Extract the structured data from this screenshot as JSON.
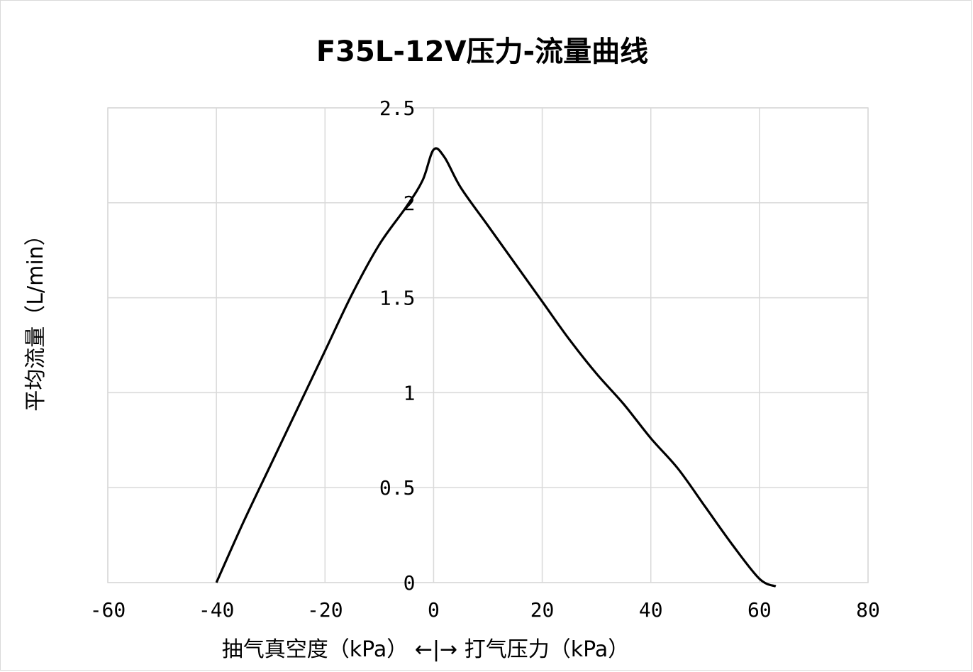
{
  "chart_data": {
    "type": "line",
    "title": "F35L-12V压力-流量曲线",
    "xlabel": "抽气真空度（kPa）  ←|→  打气压力（kPa）",
    "ylabel": "平均流量（L/min）",
    "xlim": [
      -60,
      80
    ],
    "ylim": [
      0,
      2.5
    ],
    "x_ticks": [
      "-60",
      "-40",
      "-20",
      "0",
      "20",
      "40",
      "60",
      "80"
    ],
    "y_ticks": [
      "0",
      "0.5",
      "1",
      "1.5",
      "2",
      "2.5"
    ],
    "grid": true,
    "series": [
      {
        "color": "#000000",
        "x": [
          -40,
          -35,
          -30,
          -25,
          -20,
          -15,
          -10,
          -5,
          -2,
          0,
          2,
          5,
          10,
          15,
          20,
          25,
          30,
          35,
          40,
          45,
          50,
          55,
          60,
          63
        ],
        "y": [
          0,
          0.32,
          0.62,
          0.92,
          1.22,
          1.52,
          1.78,
          1.98,
          2.12,
          2.28,
          2.24,
          2.08,
          1.88,
          1.68,
          1.48,
          1.28,
          1.1,
          0.94,
          0.76,
          0.6,
          0.4,
          0.2,
          0.02,
          -0.02
        ]
      }
    ]
  }
}
